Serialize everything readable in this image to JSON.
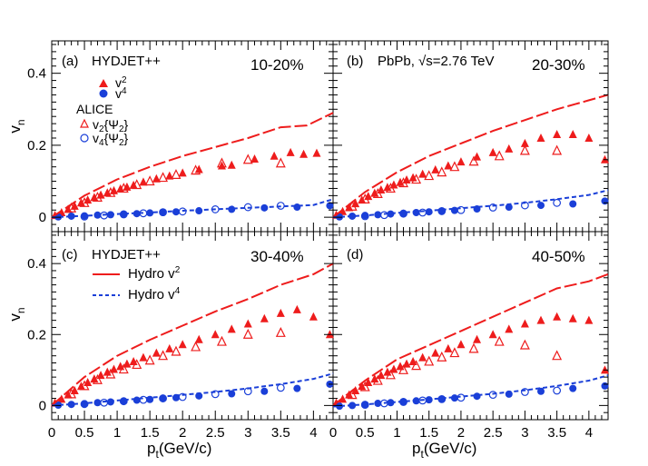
{
  "xlabel": "p",
  "xlabel_sub": "t",
  "xlabel_unit": "(GeV/c)",
  "ylabel": "v",
  "ylabel_sub": "n",
  "x_ticks": [
    "0",
    "0.5",
    "1",
    "1.5",
    "2",
    "2.5",
    "3",
    "3.5",
    "4"
  ],
  "y_ticks": [
    "0",
    "0.2",
    "0.4"
  ],
  "colors": {
    "red": "#ee1c1c",
    "blue": "#1a3fd8"
  },
  "legend": {
    "generator": "HYDJET++",
    "v2": "v",
    "v2_sub": "2",
    "v4": "v",
    "v4_sub": "4",
    "alice": "ALICE",
    "alice_v2": "v",
    "alice_v2_sub": "2",
    "alice_v2_brace": "{Ψ",
    "alice_v2_brace_sub": "2",
    "alice_v2_close": "}",
    "alice_v4": "v",
    "alice_v4_sub": "4",
    "alice_v4_brace": "{Ψ",
    "alice_v4_brace_sub": "2",
    "alice_v4_close": "}",
    "hydro_generator": "HYDJET++",
    "hydro_v2": "Hydro v",
    "hydro_v2_sub": "2",
    "hydro_v4": "Hydro v",
    "hydro_v4_sub": "4",
    "system": "PbPb, ",
    "sqrt": "√s",
    "energy": "=2.76 TeV"
  },
  "chart_data": [
    {
      "type": "scatter",
      "panel": "(a)",
      "centrality": "10-20%",
      "xlim": [
        0,
        4.3
      ],
      "ylim": [
        -0.04,
        0.49
      ],
      "series": [
        {
          "name": "HYDJET++ v2",
          "marker": "filled-triangle",
          "x": [
            0.05,
            0.15,
            0.25,
            0.35,
            0.45,
            0.55,
            0.65,
            0.75,
            0.85,
            0.95,
            1.05,
            1.15,
            1.25,
            1.4,
            1.6,
            1.8,
            2.0,
            2.25,
            2.6,
            2.75,
            3.1,
            3.4,
            3.65,
            3.85,
            4.05
          ],
          "y": [
            0.005,
            0.013,
            0.022,
            0.031,
            0.04,
            0.048,
            0.055,
            0.062,
            0.068,
            0.074,
            0.079,
            0.084,
            0.089,
            0.098,
            0.107,
            0.115,
            0.123,
            0.133,
            0.143,
            0.145,
            0.162,
            0.17,
            0.18,
            0.175,
            0.178
          ]
        },
        {
          "name": "HYDJET++ v4",
          "marker": "filled-circle",
          "x": [
            0.1,
            0.3,
            0.5,
            0.7,
            0.9,
            1.1,
            1.3,
            1.5,
            1.7,
            1.9,
            2.25,
            2.75,
            3.25,
            3.75,
            4.25
          ],
          "y": [
            0.001,
            0.003,
            0.004,
            0.006,
            0.007,
            0.009,
            0.01,
            0.012,
            0.013,
            0.015,
            0.018,
            0.022,
            0.026,
            0.028,
            0.032
          ]
        },
        {
          "name": "ALICE v2{Ψ2}",
          "marker": "open-triangle",
          "x": [
            0.3,
            0.5,
            0.7,
            0.9,
            1.1,
            1.3,
            1.5,
            1.7,
            1.9,
            2.2,
            2.6,
            3.0,
            3.5
          ],
          "y": [
            0.025,
            0.04,
            0.055,
            0.068,
            0.08,
            0.09,
            0.1,
            0.11,
            0.118,
            0.13,
            0.15,
            0.16,
            0.15
          ]
        },
        {
          "name": "ALICE v4{Ψ2}",
          "marker": "open-circle",
          "x": [
            0.5,
            0.8,
            1.1,
            1.4,
            1.7,
            2.0,
            2.5,
            3.0,
            3.5
          ],
          "y": [
            0.002,
            0.005,
            0.008,
            0.011,
            0.014,
            0.016,
            0.022,
            0.028,
            0.032
          ]
        },
        {
          "name": "Hydro v2",
          "style": "long-dash",
          "x": [
            0,
            0.5,
            1,
            1.5,
            2,
            2.5,
            3,
            3.5,
            3.9,
            4.3
          ],
          "y": [
            0,
            0.06,
            0.105,
            0.14,
            0.17,
            0.195,
            0.22,
            0.25,
            0.255,
            0.29
          ]
        },
        {
          "name": "Hydro v4",
          "style": "short-dash",
          "x": [
            0,
            0.5,
            1,
            1.5,
            2,
            2.5,
            3,
            3.5,
            4,
            4.3
          ],
          "y": [
            0,
            0.004,
            0.009,
            0.013,
            0.018,
            0.022,
            0.026,
            0.03,
            0.034,
            0.05
          ]
        }
      ]
    },
    {
      "type": "scatter",
      "panel": "(b)",
      "centrality": "20-30%",
      "xlim": [
        0,
        4.3
      ],
      "ylim": [
        -0.04,
        0.49
      ],
      "series": [
        {
          "name": "HYDJET++ v2",
          "marker": "filled-triangle",
          "x": [
            0.05,
            0.15,
            0.25,
            0.35,
            0.45,
            0.55,
            0.65,
            0.75,
            0.85,
            0.95,
            1.05,
            1.15,
            1.25,
            1.4,
            1.6,
            1.8,
            2.0,
            2.25,
            2.5,
            2.75,
            3.0,
            3.25,
            3.5,
            3.75,
            4.0,
            4.25
          ],
          "y": [
            0.006,
            0.016,
            0.027,
            0.038,
            0.048,
            0.058,
            0.067,
            0.076,
            0.083,
            0.09,
            0.097,
            0.104,
            0.11,
            0.12,
            0.132,
            0.143,
            0.154,
            0.168,
            0.18,
            0.19,
            0.205,
            0.22,
            0.23,
            0.23,
            0.22,
            0.16
          ]
        },
        {
          "name": "HYDJET++ v4",
          "marker": "filled-circle",
          "x": [
            0.1,
            0.3,
            0.5,
            0.7,
            0.9,
            1.1,
            1.3,
            1.5,
            1.7,
            1.9,
            2.25,
            2.75,
            3.25,
            3.75,
            4.25
          ],
          "y": [
            0.001,
            0.003,
            0.005,
            0.007,
            0.009,
            0.011,
            0.013,
            0.015,
            0.017,
            0.019,
            0.023,
            0.028,
            0.033,
            0.037,
            0.045
          ]
        },
        {
          "name": "ALICE v2{Ψ2}",
          "marker": "open-triangle",
          "x": [
            0.3,
            0.5,
            0.7,
            0.9,
            1.1,
            1.3,
            1.5,
            1.7,
            1.9,
            2.2,
            2.6,
            3.0,
            3.5
          ],
          "y": [
            0.03,
            0.05,
            0.065,
            0.08,
            0.095,
            0.105,
            0.115,
            0.125,
            0.14,
            0.155,
            0.17,
            0.185,
            0.185
          ]
        },
        {
          "name": "ALICE v4{Ψ2}",
          "marker": "open-circle",
          "x": [
            0.5,
            0.8,
            1.1,
            1.4,
            1.7,
            2.0,
            2.5,
            3.0,
            3.5
          ],
          "y": [
            0.003,
            0.006,
            0.01,
            0.013,
            0.017,
            0.02,
            0.027,
            0.033,
            0.04
          ]
        },
        {
          "name": "Hydro v2",
          "style": "long-dash",
          "x": [
            0,
            0.5,
            1,
            1.5,
            2,
            2.5,
            3,
            3.5,
            4,
            4.3
          ],
          "y": [
            0,
            0.07,
            0.125,
            0.17,
            0.205,
            0.24,
            0.27,
            0.3,
            0.325,
            0.34
          ]
        },
        {
          "name": "Hydro v4",
          "style": "short-dash",
          "x": [
            0,
            0.5,
            1,
            1.5,
            2,
            2.5,
            3,
            3.5,
            4,
            4.3
          ],
          "y": [
            0,
            0.005,
            0.012,
            0.018,
            0.025,
            0.032,
            0.04,
            0.05,
            0.062,
            0.075
          ]
        }
      ]
    },
    {
      "type": "scatter",
      "panel": "(c)",
      "centrality": "30-40%",
      "xlim": [
        0,
        4.3
      ],
      "ylim": [
        -0.04,
        0.49
      ],
      "series": [
        {
          "name": "HYDJET++ v2",
          "marker": "filled-triangle",
          "x": [
            0.05,
            0.15,
            0.25,
            0.35,
            0.45,
            0.55,
            0.65,
            0.75,
            0.85,
            0.95,
            1.05,
            1.15,
            1.25,
            1.4,
            1.6,
            1.8,
            2.0,
            2.25,
            2.5,
            2.75,
            3.0,
            3.25,
            3.5,
            3.75,
            4.0,
            4.25
          ],
          "y": [
            0.007,
            0.018,
            0.03,
            0.042,
            0.054,
            0.065,
            0.075,
            0.085,
            0.094,
            0.102,
            0.11,
            0.117,
            0.124,
            0.135,
            0.148,
            0.16,
            0.172,
            0.186,
            0.2,
            0.215,
            0.23,
            0.245,
            0.26,
            0.27,
            0.25,
            0.2
          ]
        },
        {
          "name": "HYDJET++ v4",
          "marker": "filled-circle",
          "x": [
            0.1,
            0.3,
            0.5,
            0.7,
            0.9,
            1.1,
            1.3,
            1.5,
            1.7,
            1.9,
            2.25,
            2.75,
            3.25,
            3.75,
            4.25
          ],
          "y": [
            0.001,
            0.003,
            0.005,
            0.008,
            0.01,
            0.012,
            0.015,
            0.017,
            0.02,
            0.022,
            0.027,
            0.033,
            0.04,
            0.048,
            0.06
          ]
        },
        {
          "name": "ALICE v2{Ψ2}",
          "marker": "open-triangle",
          "x": [
            0.3,
            0.5,
            0.7,
            0.9,
            1.1,
            1.3,
            1.5,
            1.7,
            1.9,
            2.2,
            2.6,
            3.0,
            3.5
          ],
          "y": [
            0.032,
            0.055,
            0.072,
            0.088,
            0.102,
            0.115,
            0.127,
            0.14,
            0.152,
            0.165,
            0.18,
            0.2,
            0.205
          ]
        },
        {
          "name": "ALICE v4{Ψ2}",
          "marker": "open-circle",
          "x": [
            0.5,
            0.8,
            1.1,
            1.4,
            1.7,
            2.0,
            2.5,
            3.0,
            3.5
          ],
          "y": [
            0.004,
            0.008,
            0.012,
            0.016,
            0.02,
            0.024,
            0.032,
            0.04,
            0.05
          ]
        },
        {
          "name": "Hydro v2",
          "style": "long-dash",
          "x": [
            0,
            0.5,
            1,
            1.5,
            2,
            2.5,
            3,
            3.5,
            4,
            4.3
          ],
          "y": [
            0,
            0.08,
            0.14,
            0.185,
            0.225,
            0.265,
            0.3,
            0.34,
            0.37,
            0.4
          ]
        },
        {
          "name": "Hydro v4",
          "style": "short-dash",
          "x": [
            0,
            0.5,
            1,
            1.5,
            2,
            2.5,
            3,
            3.5,
            4,
            4.3
          ],
          "y": [
            0,
            0.006,
            0.014,
            0.022,
            0.03,
            0.038,
            0.048,
            0.06,
            0.075,
            0.09
          ]
        }
      ]
    },
    {
      "type": "scatter",
      "panel": "(d)",
      "centrality": "40-50%",
      "xlim": [
        0,
        4.3
      ],
      "ylim": [
        -0.04,
        0.49
      ],
      "series": [
        {
          "name": "HYDJET++ v2",
          "marker": "filled-triangle",
          "x": [
            0.05,
            0.15,
            0.25,
            0.35,
            0.45,
            0.55,
            0.65,
            0.75,
            0.85,
            0.95,
            1.05,
            1.15,
            1.25,
            1.4,
            1.6,
            1.8,
            2.0,
            2.25,
            2.5,
            2.75,
            3.0,
            3.25,
            3.5,
            3.75,
            4.0,
            4.25
          ],
          "y": [
            0.007,
            0.018,
            0.03,
            0.042,
            0.054,
            0.065,
            0.075,
            0.085,
            0.094,
            0.102,
            0.11,
            0.117,
            0.124,
            0.135,
            0.148,
            0.16,
            0.172,
            0.186,
            0.2,
            0.215,
            0.23,
            0.24,
            0.25,
            0.245,
            0.24,
            0.1
          ]
        },
        {
          "name": "HYDJET++ v4",
          "marker": "filled-circle",
          "x": [
            0.1,
            0.3,
            0.5,
            0.7,
            0.9,
            1.1,
            1.3,
            1.5,
            1.7,
            1.9,
            2.25,
            2.75,
            3.25,
            3.75,
            4.25
          ],
          "y": [
            -0.002,
            0.0,
            0.003,
            0.006,
            0.008,
            0.011,
            0.013,
            0.016,
            0.018,
            0.021,
            0.026,
            0.032,
            0.04,
            0.048,
            0.055
          ]
        },
        {
          "name": "ALICE v2{Ψ2}",
          "marker": "open-triangle",
          "x": [
            0.3,
            0.5,
            0.7,
            0.9,
            1.1,
            1.3,
            1.5,
            1.7,
            1.9,
            2.2,
            2.6,
            3.0,
            3.5
          ],
          "y": [
            0.03,
            0.052,
            0.07,
            0.086,
            0.1,
            0.112,
            0.124,
            0.136,
            0.148,
            0.16,
            0.18,
            0.17,
            0.14
          ]
        },
        {
          "name": "ALICE v4{Ψ2}",
          "marker": "open-circle",
          "x": [
            0.5,
            0.8,
            1.1,
            1.4,
            1.7,
            2.0,
            2.5,
            3.0,
            3.5
          ],
          "y": [
            0.002,
            0.006,
            0.01,
            0.014,
            0.018,
            0.022,
            0.03,
            0.038,
            0.042
          ]
        },
        {
          "name": "Hydro v2",
          "style": "long-dash",
          "x": [
            0,
            0.5,
            1,
            1.5,
            2,
            2.5,
            3,
            3.5,
            4,
            4.3
          ],
          "y": [
            0,
            0.07,
            0.13,
            0.17,
            0.21,
            0.25,
            0.29,
            0.33,
            0.35,
            0.37
          ]
        },
        {
          "name": "Hydro v4",
          "style": "short-dash",
          "x": [
            0,
            0.5,
            1,
            1.5,
            2,
            2.5,
            3,
            3.5,
            4,
            4.3
          ],
          "y": [
            -0.003,
            0.003,
            0.01,
            0.017,
            0.025,
            0.033,
            0.043,
            0.055,
            0.07,
            0.085
          ]
        }
      ]
    }
  ]
}
